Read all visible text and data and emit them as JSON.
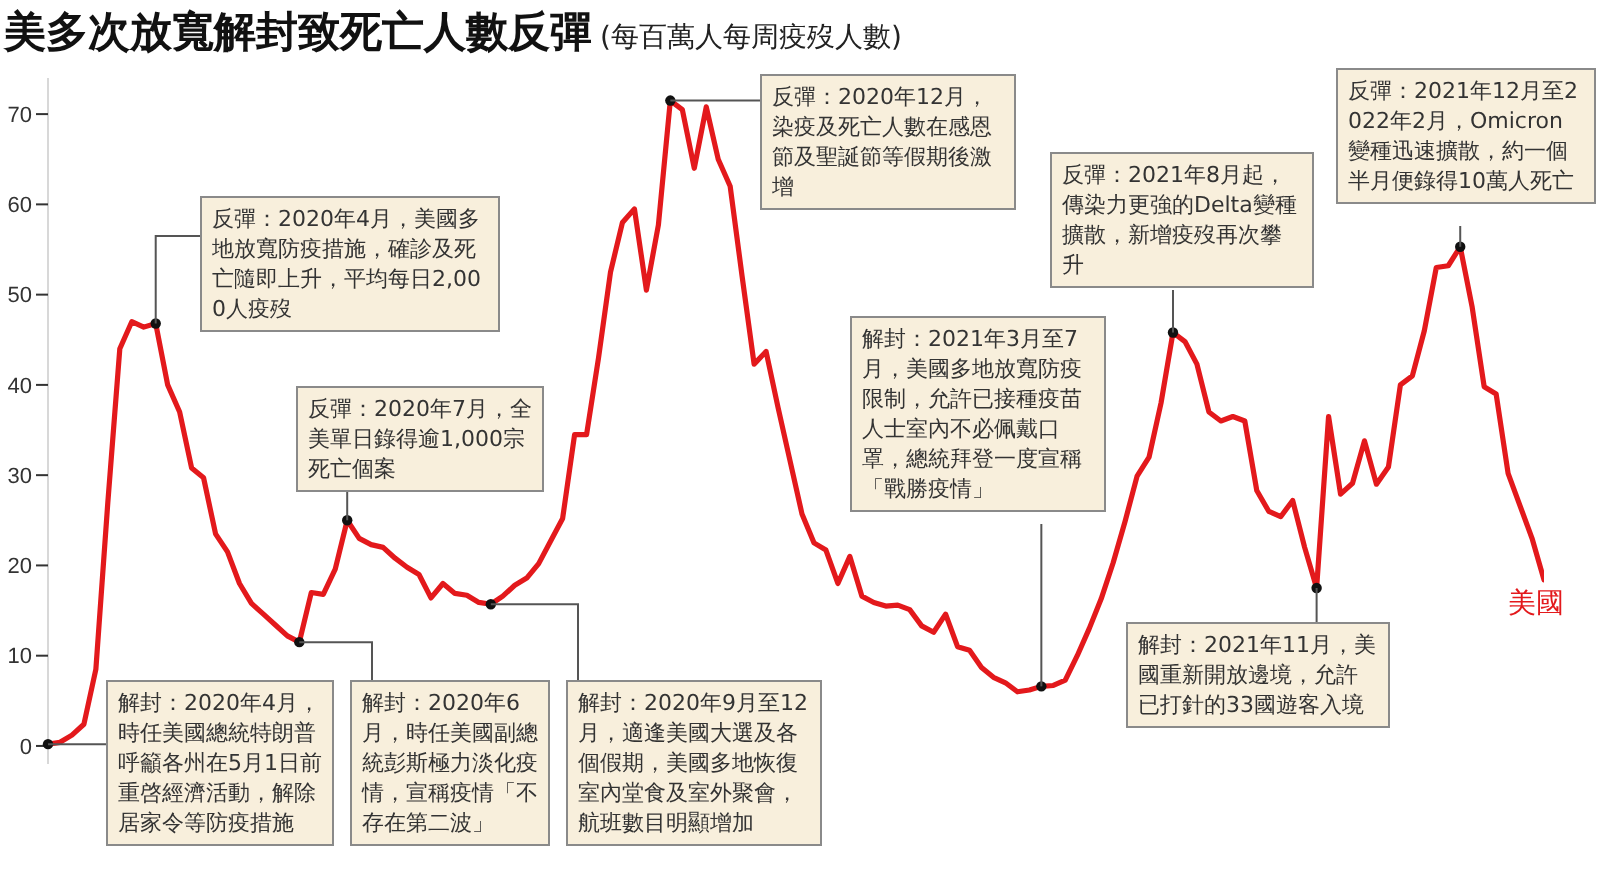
{
  "chart_data": {
    "type": "line",
    "title": "美多次放寬解封致死亡人數反彈",
    "subtitle": "(每百萬人每周疫歿人數)",
    "categories": [
      null,
      null,
      null,
      null,
      null,
      null,
      null,
      null,
      null,
      null,
      null,
      null,
      null,
      null,
      null,
      null,
      null,
      null,
      null,
      null,
      null,
      null,
      null,
      null,
      null,
      null,
      null,
      null,
      null,
      null,
      null,
      null,
      null,
      null,
      null,
      null,
      null,
      null,
      null,
      null,
      null,
      null,
      null,
      null,
      null,
      null,
      null,
      null,
      null,
      null,
      null,
      null,
      null,
      null,
      null,
      null,
      null,
      null,
      null,
      null,
      null,
      null,
      null,
      null,
      null,
      null,
      null,
      null,
      null,
      null,
      null,
      null,
      null,
      null,
      null,
      null,
      null,
      null,
      null,
      null,
      null,
      null,
      null,
      null,
      null,
      null,
      null,
      null,
      null,
      null,
      null,
      null,
      null,
      null,
      null,
      null,
      null,
      null,
      null,
      null,
      null,
      null,
      null,
      null,
      null,
      null,
      null,
      null,
      null,
      null,
      null,
      null,
      null,
      null,
      null,
      null,
      null,
      null,
      null,
      null,
      null,
      null,
      null,
      null,
      null,
      null
    ],
    "series": [
      {
        "name": "美國",
        "color": "#e3191c",
        "values": [
          0.2,
          0.4,
          1.2,
          2.4,
          8.5,
          27,
          44,
          47,
          46.4,
          46.8,
          40,
          37,
          30.8,
          29.7,
          23.5,
          21.5,
          18,
          15.8,
          14.6,
          13.4,
          12.2,
          11.5,
          17,
          16.8,
          19.6,
          25,
          23,
          22.3,
          22,
          20.8,
          19.8,
          19,
          16.4,
          18,
          16.9,
          16.7,
          15.9,
          15.7,
          16.6,
          17.8,
          18.6,
          20.2,
          22.7,
          25.2,
          34.5,
          34.5,
          43,
          52.5,
          58,
          59.5,
          50.5,
          57.7,
          71.5,
          70.5,
          64,
          70.8,
          65,
          62,
          52,
          42.3,
          43.7,
          37.5,
          31.6,
          25.7,
          22.5,
          21.7,
          18,
          21,
          16.6,
          15.9,
          15.5,
          15.6,
          15.1,
          13.3,
          12.6,
          14.6,
          11,
          10.6,
          8.7,
          7.6,
          7,
          6,
          6.2,
          6.6,
          6.7,
          7.3,
          10,
          13,
          16.3,
          20.3,
          24.9,
          29.9,
          32,
          38,
          45.8,
          44.8,
          42.3,
          37,
          36,
          36.5,
          36,
          28.3,
          26,
          25.4,
          27.2,
          22,
          17.5,
          36.5,
          27.9,
          29.1,
          33.8,
          29,
          30.9,
          40,
          41,
          46,
          53,
          53.2,
          55.3,
          48.6,
          39.8,
          39,
          30.2,
          26.6,
          23,
          18.4
        ]
      }
    ],
    "ylim": [
      -2,
      74
    ],
    "yticks": [
      0,
      10,
      20,
      30,
      40,
      50,
      60,
      70
    ],
    "annotations": [
      "解封：2020年4月，時任美國總統特朗普呼籲各州在5月1日前重啓經濟活動，解除居家令等防疫措施",
      "反彈：2020年4月，美國多地放寬防疫措施，確診及死亡隨即上升，平均每日2,000人疫歿",
      "解封：2020年6月，時任美國副總統彭斯極力淡化疫情，宣稱疫情「不存在第二波」",
      "反彈：2020年7月，全美單日錄得逾1,000宗死亡個案",
      "解封：2020年9月至12月，適逢美國大選及各個假期，美國多地恢復室內堂食及室外聚會，航班數目明顯增加",
      "反彈：2020年12月，染疫及死亡人數在感恩節及聖誕節等假期後激增",
      "解封：2021年3月至7月，美國多地放寬防疫限制，允許已接種疫苗人士室內不必佩戴口罩，總統拜登一度宣稱「戰勝疫情」",
      "反彈：2021年8月起，傳染力更強的Delta變種擴散，新增疫歿再次攀升",
      "解封：2021年11月，美國重新開放邊境，允許已打針的33國遊客入境",
      "反彈：2021年12月至2022年2月，Omicron變種迅速擴散，約一個半月便錄得10萬人死亡"
    ]
  }
}
